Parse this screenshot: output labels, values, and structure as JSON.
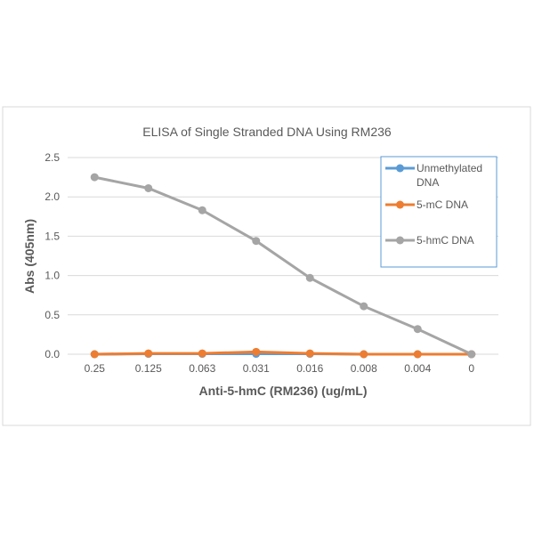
{
  "chart_data": {
    "type": "line",
    "title": "ELISA of Single Stranded DNA Using RM236",
    "xlabel": "Anti-5-hmC (RM236) (ug/mL)",
    "ylabel": "Abs (405nm)",
    "categories": [
      "0.25",
      "0.125",
      "0.063",
      "0.031",
      "0.016",
      "0.008",
      "0.004",
      "0"
    ],
    "ylim": [
      0,
      2.5
    ],
    "yticks": [
      "0.0",
      "0.5",
      "1.0",
      "1.5",
      "2.0",
      "2.5"
    ],
    "grid": true,
    "legend_position": "top-right",
    "series": [
      {
        "name": "Unmethylated DNA",
        "color": "#5b9bd5",
        "values": [
          0.0,
          0.005,
          0.005,
          0.005,
          0.005,
          0.0,
          0.0,
          0.0
        ]
      },
      {
        "name": "5-mC DNA",
        "color": "#ed7d31",
        "values": [
          0.0,
          0.01,
          0.01,
          0.03,
          0.01,
          0.0,
          0.0,
          0.0
        ]
      },
      {
        "name": "5-hmC DNA",
        "color": "#a5a5a5",
        "values": [
          2.25,
          2.11,
          1.83,
          1.44,
          0.97,
          0.61,
          0.32,
          0.0
        ]
      }
    ]
  }
}
